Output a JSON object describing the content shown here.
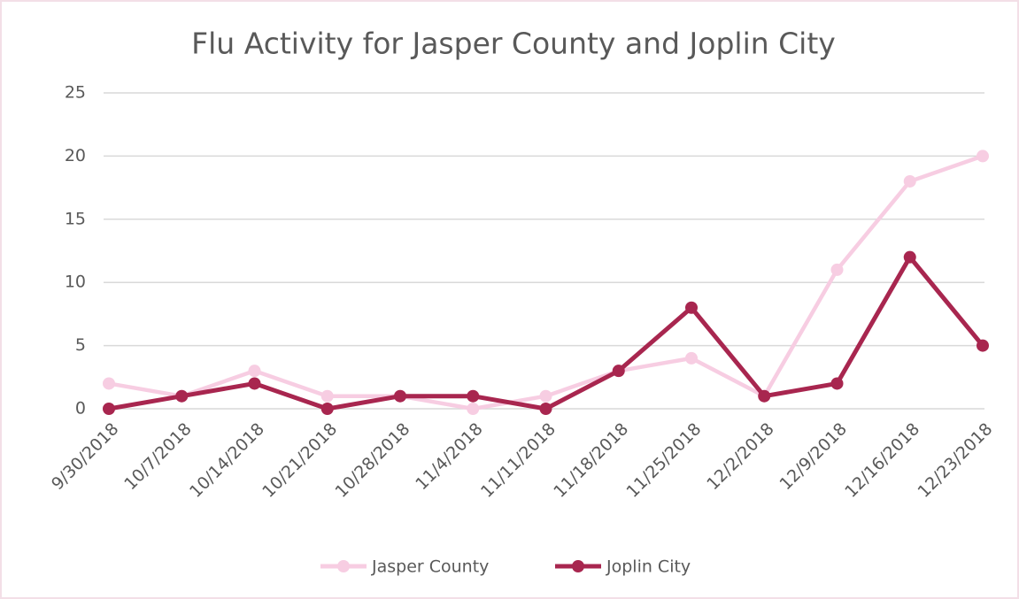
{
  "chart_data": {
    "type": "line",
    "title": "Flu Activity for Jasper County and Joplin City",
    "categories": [
      "9/30/2018",
      "10/7/2018",
      "10/14/2018",
      "10/21/2018",
      "10/28/2018",
      "11/4/2018",
      "11/11/2018",
      "11/18/2018",
      "11/25/2018",
      "12/2/2018",
      "12/9/2018",
      "12/16/2018",
      "12/23/2018"
    ],
    "series": [
      {
        "name": "Jasper County",
        "color": "#f7cde2",
        "values": [
          2,
          1,
          3,
          1,
          1,
          0,
          1,
          3,
          4,
          1,
          11,
          18,
          20
        ]
      },
      {
        "name": "Joplin City",
        "color": "#a8264f",
        "values": [
          0,
          1,
          2,
          0,
          1,
          1,
          0,
          3,
          8,
          1,
          2,
          12,
          5
        ]
      }
    ],
    "ylim": [
      0,
      25
    ],
    "yticks": [
      0,
      5,
      10,
      15,
      20,
      25
    ],
    "grid": true,
    "legend": "bottom"
  }
}
